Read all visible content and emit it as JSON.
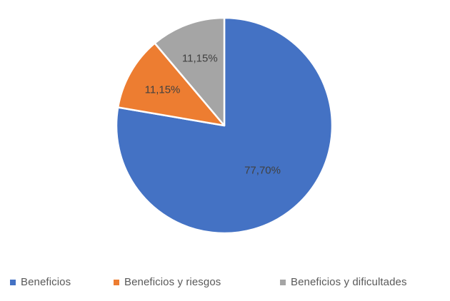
{
  "chart_data": {
    "type": "pie",
    "categories": [
      "Beneficios",
      "Beneficios y riesgos",
      "Beneficios y dificultades"
    ],
    "values": [
      77.7,
      11.15,
      11.15
    ],
    "data_labels": [
      "77,70%",
      "11,15%",
      "11,15%"
    ],
    "colors": [
      "#4472C4",
      "#ED7D31",
      "#A5A5A5"
    ],
    "title": "",
    "legend_placement": "bottom",
    "start_angle": "top, clockwise"
  },
  "legend": {
    "items": [
      {
        "label": "Beneficios",
        "color": "#4472C4"
      },
      {
        "label": "Beneficios y riesgos",
        "color": "#ED7D31"
      },
      {
        "label": "Beneficios y dificultades",
        "color": "#A5A5A5"
      }
    ]
  }
}
